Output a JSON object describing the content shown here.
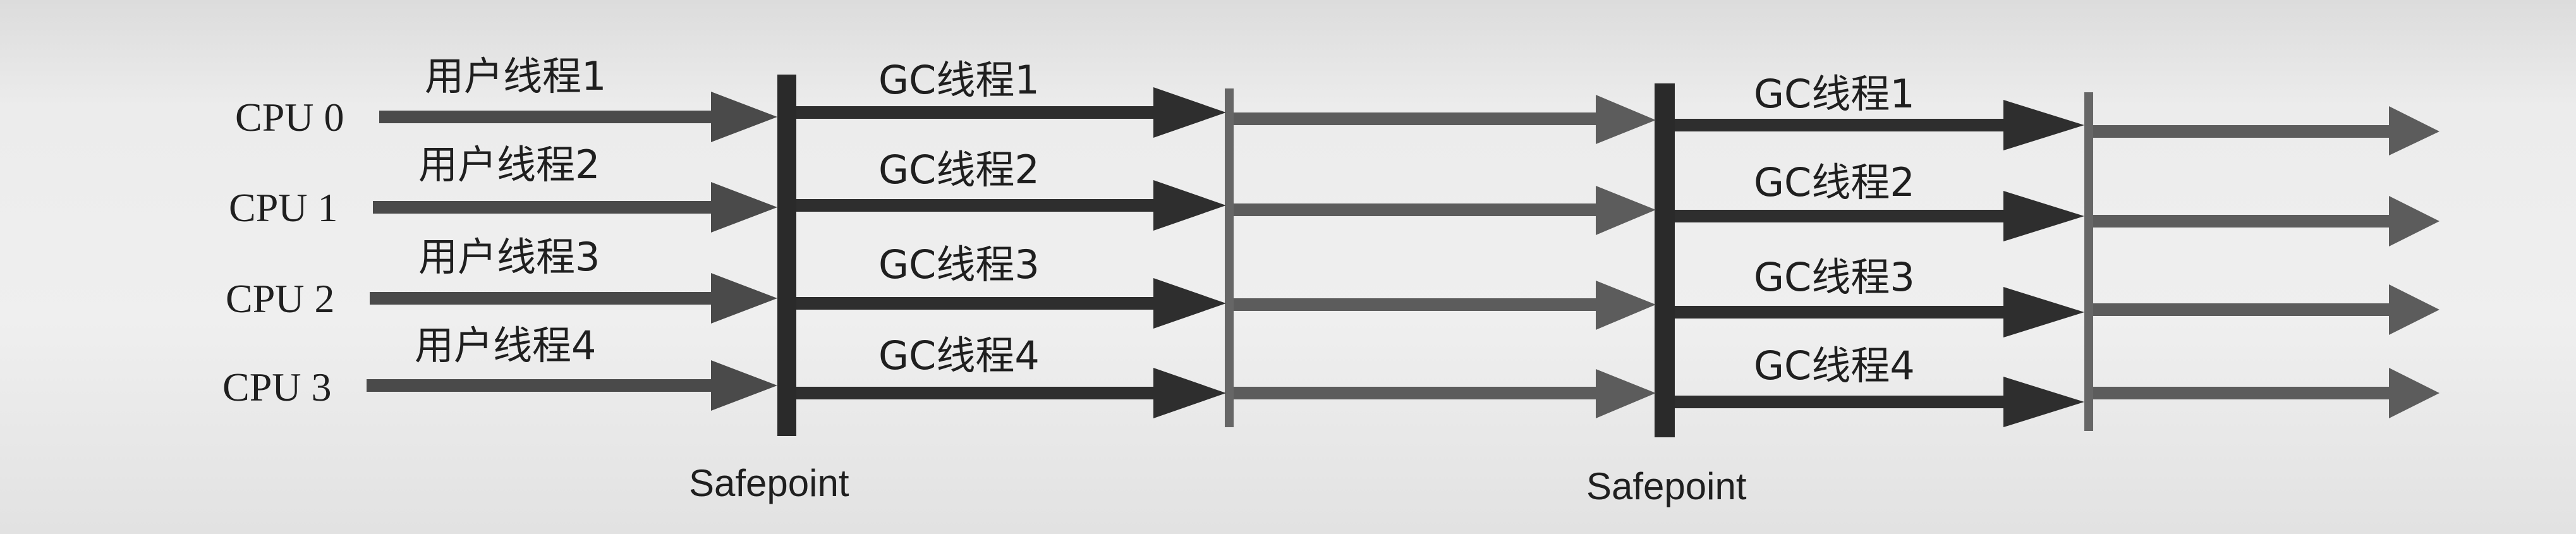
{
  "cpus": [
    {
      "label": "CPU 0",
      "user_thread": "用户线程1",
      "gc_thread_a": "GC线程1",
      "gc_thread_b": "GC线程1"
    },
    {
      "label": "CPU 1",
      "user_thread": "用户线程2",
      "gc_thread_a": "GC线程2",
      "gc_thread_b": "GC线程2"
    },
    {
      "label": "CPU 2",
      "user_thread": "用户线程3",
      "gc_thread_a": "GC线程3",
      "gc_thread_b": "GC线程3"
    },
    {
      "label": "CPU 3",
      "user_thread": "用户线程4",
      "gc_thread_a": "GC线程4",
      "gc_thread_b": "GC线程4"
    }
  ],
  "safepoint_label": "Safepoint",
  "colors": {
    "dark_arrow": "#2e2e2e",
    "medium_arrow": "#4a4a4a",
    "light_arrow": "#5c5c5c",
    "barrier": "#2a2a2a",
    "faint_barrier": "#666666"
  }
}
